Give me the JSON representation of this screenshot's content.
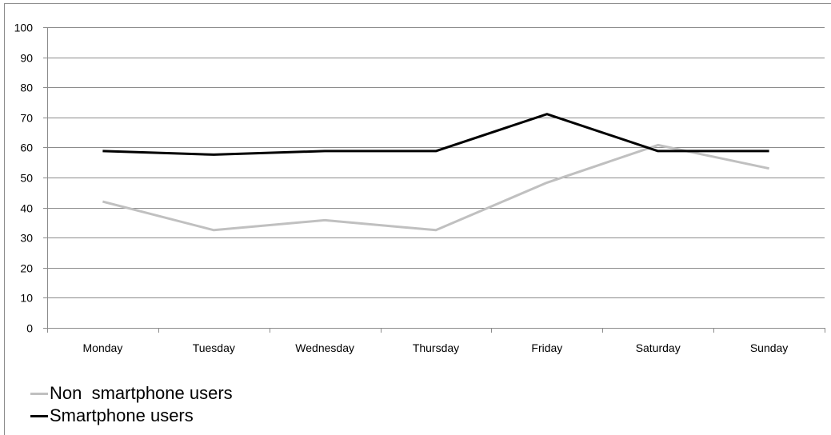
{
  "chart_data": {
    "type": "line",
    "title": "",
    "xlabel": "",
    "ylabel": "",
    "categories": [
      "Monday",
      "Tuesday",
      "Wednesday",
      "Thursday",
      "Friday",
      "Saturday",
      "Sunday"
    ],
    "series": [
      {
        "name": "Non  smartphone users",
        "color": "#c0c0c0",
        "values": [
          42,
          32.5,
          35.8,
          32.5,
          48.3,
          60.8,
          53
        ]
      },
      {
        "name": "Smartphone users",
        "color": "#000000",
        "values": [
          58.8,
          57.6,
          58.8,
          58.8,
          71.1,
          58.8,
          58.8
        ]
      }
    ],
    "ylim": [
      0,
      100
    ],
    "yticks": [
      "0",
      "10",
      "20",
      "30",
      "40",
      "50",
      "60",
      "70",
      "80",
      "90",
      "100"
    ],
    "grid": true,
    "gridline_color": "#8c8c8c",
    "legend_position": "bottom-left"
  }
}
